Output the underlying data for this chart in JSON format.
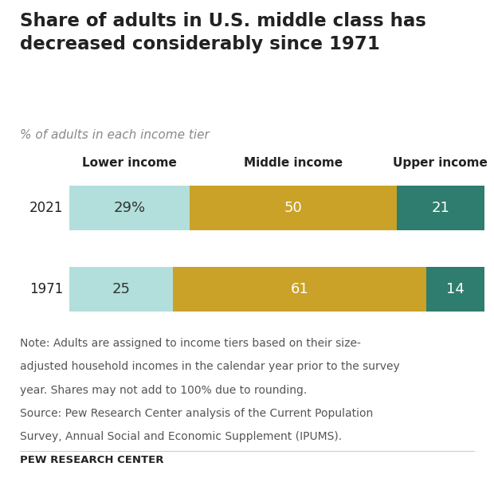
{
  "title": "Share of adults in U.S. middle class has\ndecreased considerably since 1971",
  "subtitle": "% of adults in each income tier",
  "years": [
    "2021",
    "1971"
  ],
  "categories": [
    "Lower income",
    "Middle income",
    "Upper income"
  ],
  "values": {
    "2021": [
      29,
      50,
      21
    ],
    "1971": [
      25,
      61,
      14
    ]
  },
  "labels": {
    "2021": [
      "29%",
      "50",
      "21"
    ],
    "1971": [
      "25",
      "61",
      "14"
    ]
  },
  "colors": [
    "#b2dfdb",
    "#c9a227",
    "#2e7d6e"
  ],
  "note_line1": "Note: Adults are assigned to income tiers based on their size-",
  "note_line2": "adjusted household incomes in the calendar year prior to the survey",
  "note_line3": "year. Shares may not add to 100% due to rounding.",
  "note_line4": "Source: Pew Research Center analysis of the Current Population",
  "note_line5": "Survey, Annual Social and Economic Supplement (IPUMS).",
  "source_label": "PEW RESEARCH CENTER",
  "title_fontsize": 16.5,
  "subtitle_fontsize": 11,
  "label_fontsize": 13,
  "header_fontsize": 11,
  "note_fontsize": 10,
  "source_fontsize": 9.5,
  "year_fontsize": 12,
  "background_color": "#ffffff",
  "text_color": "#222222",
  "subtitle_color": "#888888",
  "note_color": "#555555",
  "bar_text_color_light": "#ffffff",
  "bar_text_color_dark": "#333333"
}
